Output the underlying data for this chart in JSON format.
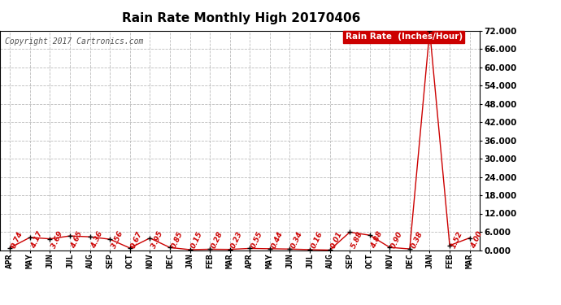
{
  "title": "Rain Rate Monthly High 20170406",
  "copyright": "Copyright 2017 Cartronics.com",
  "legend_label": "Rain Rate  (Inches/Hour)",
  "legend_bg": "#cc0000",
  "legend_fg": "#ffffff",
  "line_color": "#cc0000",
  "marker_color": "#000000",
  "background_color": "#ffffff",
  "grid_color": "#bbbbbb",
  "label_color": "#cc0000",
  "x_labels": [
    "APR",
    "MAY",
    "JUN",
    "JUL",
    "AUG",
    "SEP",
    "OCT",
    "NOV",
    "DEC",
    "JAN",
    "FEB",
    "MAR",
    "APR",
    "MAY",
    "JUN",
    "JUL",
    "AUG",
    "SEP",
    "OCT",
    "NOV",
    "DEC",
    "JAN",
    "FEB",
    "MAR"
  ],
  "values": [
    0.74,
    4.17,
    3.69,
    4.65,
    4.36,
    3.56,
    0.67,
    3.95,
    0.85,
    0.15,
    0.28,
    0.23,
    0.55,
    0.44,
    0.34,
    0.16,
    0.01,
    5.88,
    4.88,
    0.9,
    0.38,
    72.0,
    1.52,
    4.0
  ],
  "value_labels": [
    "0.74",
    "4.17",
    "3.69",
    "4.65",
    "4.36",
    "3.56",
    "0.67",
    "3.95",
    "0.85",
    "0.15",
    "0.28",
    "0.23",
    "0.55",
    "0.44",
    "0.34",
    "0.16",
    "0.01",
    "5.88",
    "4.88",
    "0.90",
    "0.38",
    "",
    "1.52",
    "4.00"
  ],
  "ylim": [
    0.0,
    72.0
  ],
  "yticks": [
    0.0,
    6.0,
    12.0,
    18.0,
    24.0,
    30.0,
    36.0,
    42.0,
    48.0,
    54.0,
    60.0,
    66.0,
    72.0
  ],
  "ytick_labels": [
    "0.000",
    "6.000",
    "12.000",
    "18.000",
    "24.000",
    "30.000",
    "36.000",
    "42.000",
    "48.000",
    "54.000",
    "60.000",
    "66.000",
    "72.000"
  ],
  "title_fontsize": 11,
  "copyright_fontsize": 7,
  "label_fontsize": 6.5,
  "tick_fontsize": 7.5,
  "legend_fontsize": 7.5
}
